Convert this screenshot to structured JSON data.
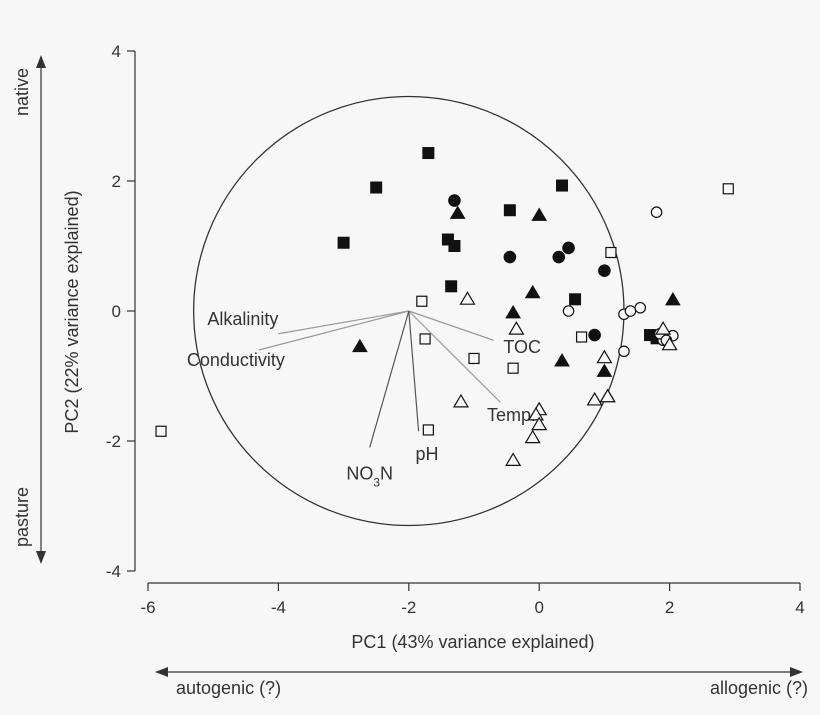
{
  "chart_data": {
    "type": "scatter",
    "title": "",
    "xlabel": "PC1 (43% variance explained)",
    "ylabel": "PC2 (22% variance explained)",
    "xlim": [
      -6,
      4
    ],
    "ylim": [
      -4,
      4
    ],
    "xticks": [
      "-6",
      "-4",
      "-2",
      "0",
      "2",
      "4"
    ],
    "yticks": [
      "-4",
      "-2",
      "0",
      "2",
      "4"
    ],
    "grid": false,
    "legend": "none",
    "y_direction_labels": {
      "top": "native",
      "bottom": "pasture"
    },
    "x_direction_labels": {
      "left": "autogenic (?)",
      "right": "allogenic (?)"
    },
    "circle": {
      "center": [
        -2,
        0
      ],
      "radius": 3.3
    },
    "vectors_origin": [
      -2,
      0
    ],
    "vectors": [
      {
        "label": "Alkalinity",
        "end": [
          -4.0,
          -0.35
        ]
      },
      {
        "label": "Conductivity",
        "end": [
          -4.3,
          -0.6
        ]
      },
      {
        "label": "TOC",
        "end": [
          -0.7,
          -0.45
        ]
      },
      {
        "label": "Temp.",
        "end": [
          -0.6,
          -1.4
        ]
      },
      {
        "label": "NO3N",
        "end": [
          -2.6,
          -2.1
        ]
      },
      {
        "label": "pH",
        "end": [
          -1.85,
          -1.85
        ]
      }
    ],
    "series": [
      {
        "marker": "filled-square",
        "x": [
          -1.7,
          -2.5,
          -3.0,
          -1.4,
          -1.3,
          -1.35,
          -0.45,
          0.35,
          0.55,
          1.7,
          1.8
        ],
        "y": [
          2.43,
          1.9,
          1.05,
          1.1,
          1.0,
          0.38,
          1.55,
          1.93,
          0.18,
          -0.37,
          -0.42
        ]
      },
      {
        "marker": "filled-circle",
        "x": [
          -1.3,
          -0.45,
          0.3,
          0.45,
          1.0,
          0.85
        ],
        "y": [
          1.7,
          0.83,
          0.83,
          0.97,
          0.62,
          -0.37
        ]
      },
      {
        "marker": "filled-triangle",
        "x": [
          -1.25,
          0.0,
          -0.4,
          -0.1,
          -2.75,
          0.35,
          1.0,
          2.05
        ],
        "y": [
          1.5,
          1.47,
          -0.03,
          0.28,
          -0.55,
          -0.77,
          -0.93,
          0.17
        ]
      },
      {
        "marker": "open-square",
        "x": [
          -1.8,
          -1.75,
          -1.0,
          -0.4,
          -5.8,
          -1.7,
          0.65,
          1.1,
          2.9
        ],
        "y": [
          0.15,
          -0.43,
          -0.73,
          -0.88,
          -1.85,
          -1.83,
          -0.4,
          0.9,
          1.88
        ]
      },
      {
        "marker": "open-circle",
        "x": [
          0.45,
          1.3,
          1.4,
          1.55,
          1.8,
          1.9,
          2.05,
          1.3,
          1.85,
          1.95
        ],
        "y": [
          0.0,
          -0.05,
          0.0,
          0.05,
          1.52,
          -0.45,
          -0.38,
          -0.62,
          -0.35,
          -0.45
        ]
      },
      {
        "marker": "open-triangle",
        "x": [
          -1.1,
          -0.35,
          -1.2,
          -0.4,
          0.0,
          -0.05,
          0.0,
          -0.1,
          0.85,
          1.0,
          1.05,
          1.05,
          1.9,
          2.0
        ],
        "y": [
          0.18,
          -0.28,
          -1.4,
          -2.3,
          -1.52,
          -1.6,
          -1.75,
          -1.95,
          -1.37,
          -0.72,
          -1.32,
          -1.32,
          -0.28,
          -0.52
        ]
      }
    ]
  }
}
